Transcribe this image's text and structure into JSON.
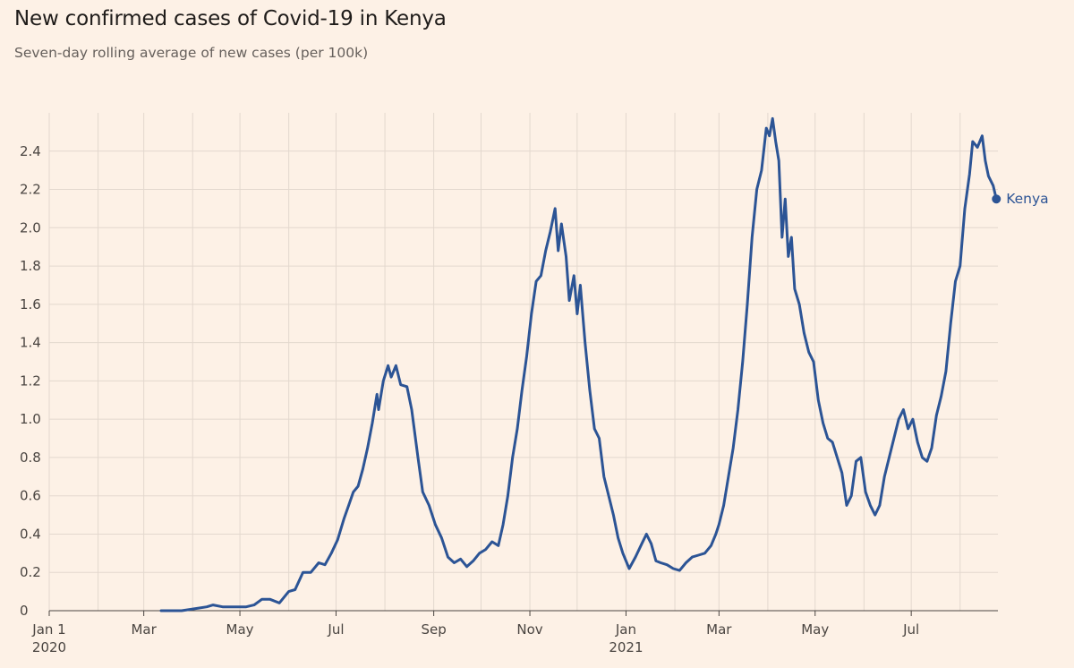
{
  "title": "New confirmed cases of Covid-19 in Kenya",
  "subtitle": "Seven-day rolling average of new cases (per 100k)",
  "chart_data": {
    "type": "line",
    "title": "New confirmed cases of Covid-19 in Kenya",
    "subtitle": "Seven-day rolling average of new cases (per 100k)",
    "xlabel": "",
    "ylabel": "",
    "x_range": [
      "2020-01-01",
      "2021-08-25"
    ],
    "ylim": [
      0,
      2.6
    ],
    "y_ticks": [
      0,
      0.2,
      0.4,
      0.6,
      0.8,
      1.0,
      1.2,
      1.4,
      1.6,
      1.8,
      2.0,
      2.2,
      2.4
    ],
    "y_tick_labels": [
      "0",
      "0.2",
      "0.4",
      "0.6",
      "0.8",
      "1.0",
      "1.2",
      "1.4",
      "1.6",
      "1.8",
      "2.0",
      "2.2",
      "2.4"
    ],
    "x_ticks": [
      {
        "date": "2020-01-01",
        "label": "Jan 1",
        "sublabel": "2020"
      },
      {
        "date": "2020-03-01",
        "label": "Mar",
        "sublabel": ""
      },
      {
        "date": "2020-05-01",
        "label": "May",
        "sublabel": ""
      },
      {
        "date": "2020-07-01",
        "label": "Jul",
        "sublabel": ""
      },
      {
        "date": "2020-09-01",
        "label": "Sep",
        "sublabel": ""
      },
      {
        "date": "2020-11-01",
        "label": "Nov",
        "sublabel": ""
      },
      {
        "date": "2021-01-01",
        "label": "Jan",
        "sublabel": "2021"
      },
      {
        "date": "2021-03-01",
        "label": "Mar",
        "sublabel": ""
      },
      {
        "date": "2021-05-01",
        "label": "May",
        "sublabel": ""
      },
      {
        "date": "2021-07-01",
        "label": "Jul",
        "sublabel": ""
      }
    ],
    "grid": true,
    "series": [
      {
        "name": "Kenya",
        "color": "#2c5495",
        "end_marker": true,
        "points": [
          [
            "2020-03-12",
            0.0
          ],
          [
            "2020-03-25",
            0.0
          ],
          [
            "2020-04-02",
            0.01
          ],
          [
            "2020-04-10",
            0.02
          ],
          [
            "2020-04-14",
            0.03
          ],
          [
            "2020-04-20",
            0.02
          ],
          [
            "2020-04-28",
            0.02
          ],
          [
            "2020-05-05",
            0.02
          ],
          [
            "2020-05-10",
            0.03
          ],
          [
            "2020-05-15",
            0.06
          ],
          [
            "2020-05-20",
            0.06
          ],
          [
            "2020-05-26",
            0.04
          ],
          [
            "2020-06-01",
            0.1
          ],
          [
            "2020-06-05",
            0.11
          ],
          [
            "2020-06-10",
            0.2
          ],
          [
            "2020-06-15",
            0.2
          ],
          [
            "2020-06-20",
            0.25
          ],
          [
            "2020-06-24",
            0.24
          ],
          [
            "2020-06-28",
            0.3
          ],
          [
            "2020-07-02",
            0.37
          ],
          [
            "2020-07-06",
            0.48
          ],
          [
            "2020-07-09",
            0.55
          ],
          [
            "2020-07-12",
            0.62
          ],
          [
            "2020-07-15",
            0.65
          ],
          [
            "2020-07-18",
            0.74
          ],
          [
            "2020-07-21",
            0.85
          ],
          [
            "2020-07-24",
            0.98
          ],
          [
            "2020-07-27",
            1.13
          ],
          [
            "2020-07-28",
            1.05
          ],
          [
            "2020-07-31",
            1.2
          ],
          [
            "2020-08-03",
            1.28
          ],
          [
            "2020-08-05",
            1.22
          ],
          [
            "2020-08-08",
            1.28
          ],
          [
            "2020-08-11",
            1.18
          ],
          [
            "2020-08-15",
            1.17
          ],
          [
            "2020-08-18",
            1.05
          ],
          [
            "2020-08-22",
            0.8
          ],
          [
            "2020-08-25",
            0.62
          ],
          [
            "2020-08-29",
            0.55
          ],
          [
            "2020-09-02",
            0.45
          ],
          [
            "2020-09-06",
            0.38
          ],
          [
            "2020-09-10",
            0.28
          ],
          [
            "2020-09-14",
            0.25
          ],
          [
            "2020-09-18",
            0.27
          ],
          [
            "2020-09-22",
            0.23
          ],
          [
            "2020-09-26",
            0.26
          ],
          [
            "2020-09-30",
            0.3
          ],
          [
            "2020-10-04",
            0.32
          ],
          [
            "2020-10-08",
            0.36
          ],
          [
            "2020-10-12",
            0.34
          ],
          [
            "2020-10-15",
            0.45
          ],
          [
            "2020-10-18",
            0.6
          ],
          [
            "2020-10-21",
            0.8
          ],
          [
            "2020-10-24",
            0.95
          ],
          [
            "2020-10-27",
            1.15
          ],
          [
            "2020-10-30",
            1.33
          ],
          [
            "2020-11-02",
            1.55
          ],
          [
            "2020-11-05",
            1.72
          ],
          [
            "2020-11-08",
            1.75
          ],
          [
            "2020-11-11",
            1.88
          ],
          [
            "2020-11-14",
            1.98
          ],
          [
            "2020-11-17",
            2.1
          ],
          [
            "2020-11-19",
            1.88
          ],
          [
            "2020-11-21",
            2.02
          ],
          [
            "2020-11-24",
            1.85
          ],
          [
            "2020-11-26",
            1.62
          ],
          [
            "2020-11-29",
            1.75
          ],
          [
            "2020-12-01",
            1.55
          ],
          [
            "2020-12-03",
            1.7
          ],
          [
            "2020-12-06",
            1.4
          ],
          [
            "2020-12-09",
            1.15
          ],
          [
            "2020-12-12",
            0.95
          ],
          [
            "2020-12-15",
            0.9
          ],
          [
            "2020-12-18",
            0.7
          ],
          [
            "2020-12-21",
            0.6
          ],
          [
            "2020-12-24",
            0.5
          ],
          [
            "2020-12-27",
            0.38
          ],
          [
            "2020-12-30",
            0.3
          ],
          [
            "2021-01-03",
            0.22
          ],
          [
            "2021-01-07",
            0.28
          ],
          [
            "2021-01-11",
            0.35
          ],
          [
            "2021-01-14",
            0.4
          ],
          [
            "2021-01-17",
            0.35
          ],
          [
            "2021-01-20",
            0.26
          ],
          [
            "2021-01-23",
            0.25
          ],
          [
            "2021-01-27",
            0.24
          ],
          [
            "2021-01-31",
            0.22
          ],
          [
            "2021-02-04",
            0.21
          ],
          [
            "2021-02-08",
            0.25
          ],
          [
            "2021-02-12",
            0.28
          ],
          [
            "2021-02-16",
            0.29
          ],
          [
            "2021-02-20",
            0.3
          ],
          [
            "2021-02-24",
            0.34
          ],
          [
            "2021-02-27",
            0.4
          ],
          [
            "2021-03-01",
            0.45
          ],
          [
            "2021-03-04",
            0.55
          ],
          [
            "2021-03-07",
            0.7
          ],
          [
            "2021-03-10",
            0.85
          ],
          [
            "2021-03-13",
            1.05
          ],
          [
            "2021-03-16",
            1.3
          ],
          [
            "2021-03-19",
            1.6
          ],
          [
            "2021-03-22",
            1.95
          ],
          [
            "2021-03-25",
            2.2
          ],
          [
            "2021-03-28",
            2.3
          ],
          [
            "2021-03-31",
            2.52
          ],
          [
            "2021-04-02",
            2.48
          ],
          [
            "2021-04-04",
            2.57
          ],
          [
            "2021-04-06",
            2.45
          ],
          [
            "2021-04-08",
            2.35
          ],
          [
            "2021-04-10",
            1.95
          ],
          [
            "2021-04-12",
            2.15
          ],
          [
            "2021-04-14",
            1.85
          ],
          [
            "2021-04-16",
            1.95
          ],
          [
            "2021-04-18",
            1.68
          ],
          [
            "2021-04-21",
            1.6
          ],
          [
            "2021-04-24",
            1.45
          ],
          [
            "2021-04-27",
            1.35
          ],
          [
            "2021-04-30",
            1.3
          ],
          [
            "2021-05-03",
            1.1
          ],
          [
            "2021-05-06",
            0.98
          ],
          [
            "2021-05-09",
            0.9
          ],
          [
            "2021-05-12",
            0.88
          ],
          [
            "2021-05-15",
            0.8
          ],
          [
            "2021-05-18",
            0.72
          ],
          [
            "2021-05-21",
            0.55
          ],
          [
            "2021-05-24",
            0.6
          ],
          [
            "2021-05-27",
            0.78
          ],
          [
            "2021-05-30",
            0.8
          ],
          [
            "2021-06-02",
            0.62
          ],
          [
            "2021-06-05",
            0.55
          ],
          [
            "2021-06-08",
            0.5
          ],
          [
            "2021-06-11",
            0.55
          ],
          [
            "2021-06-14",
            0.7
          ],
          [
            "2021-06-17",
            0.8
          ],
          [
            "2021-06-20",
            0.9
          ],
          [
            "2021-06-23",
            1.0
          ],
          [
            "2021-06-26",
            1.05
          ],
          [
            "2021-06-29",
            0.95
          ],
          [
            "2021-07-02",
            1.0
          ],
          [
            "2021-07-05",
            0.88
          ],
          [
            "2021-07-08",
            0.8
          ],
          [
            "2021-07-11",
            0.78
          ],
          [
            "2021-07-14",
            0.85
          ],
          [
            "2021-07-17",
            1.02
          ],
          [
            "2021-07-20",
            1.12
          ],
          [
            "2021-07-23",
            1.25
          ],
          [
            "2021-07-26",
            1.5
          ],
          [
            "2021-07-29",
            1.72
          ],
          [
            "2021-08-01",
            1.8
          ],
          [
            "2021-08-04",
            2.1
          ],
          [
            "2021-08-07",
            2.28
          ],
          [
            "2021-08-09",
            2.45
          ],
          [
            "2021-08-12",
            2.42
          ],
          [
            "2021-08-15",
            2.48
          ],
          [
            "2021-08-17",
            2.35
          ],
          [
            "2021-08-19",
            2.27
          ],
          [
            "2021-08-22",
            2.22
          ],
          [
            "2021-08-24",
            2.15
          ]
        ]
      }
    ],
    "end_label": "Kenya"
  }
}
